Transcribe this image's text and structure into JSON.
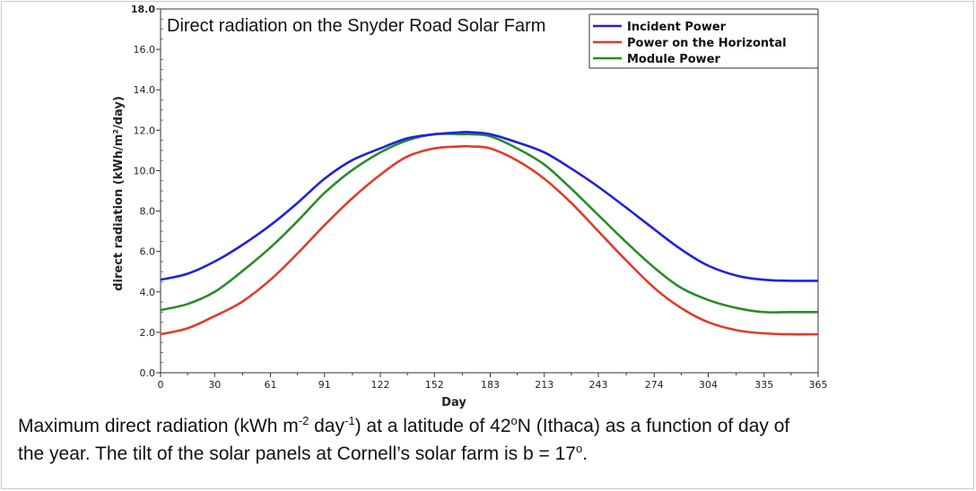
{
  "chart_data": {
    "type": "line",
    "title": "Direct radiation on the Snyder Road Solar Farm",
    "xlabel": "Day",
    "ylabel": "direct radiation (kWh/m²/day)",
    "xlim": [
      0,
      365
    ],
    "ylim": [
      0,
      18
    ],
    "x_ticks": [
      0,
      30,
      61,
      91,
      122,
      152,
      183,
      213,
      243,
      274,
      304,
      335,
      365
    ],
    "y_ticks": [
      0,
      2,
      4,
      6,
      8,
      10,
      12,
      14,
      16,
      18
    ],
    "y_tick_labels": [
      "0.0",
      "2.0",
      "4.0",
      "6.0",
      "8.0",
      "10.0",
      "12.0",
      "14.0",
      "16.0",
      "18.0"
    ],
    "x": [
      0,
      15,
      30,
      45,
      61,
      76,
      91,
      106,
      122,
      137,
      152,
      167,
      172,
      183,
      198,
      213,
      228,
      243,
      258,
      274,
      289,
      304,
      320,
      335,
      350,
      365
    ],
    "series": [
      {
        "name": "Incident Power",
        "color": "#1f1fe6",
        "values": [
          4.6,
          4.9,
          5.5,
          6.3,
          7.3,
          8.4,
          9.6,
          10.5,
          11.1,
          11.6,
          11.8,
          11.9,
          11.9,
          11.8,
          11.4,
          10.9,
          10.1,
          9.2,
          8.2,
          7.1,
          6.1,
          5.3,
          4.8,
          4.6,
          4.55,
          4.55
        ]
      },
      {
        "name": "Power on the Horizontal",
        "color": "#e5392a",
        "values": [
          1.9,
          2.2,
          2.8,
          3.5,
          4.6,
          5.9,
          7.3,
          8.6,
          9.8,
          10.7,
          11.1,
          11.2,
          11.2,
          11.1,
          10.5,
          9.6,
          8.4,
          7.0,
          5.6,
          4.2,
          3.2,
          2.5,
          2.1,
          1.95,
          1.9,
          1.9
        ]
      },
      {
        "name": "Module Power",
        "color": "#2a8c2a",
        "values": [
          3.1,
          3.4,
          4.0,
          5.0,
          6.2,
          7.5,
          8.9,
          10.0,
          10.9,
          11.5,
          11.8,
          11.8,
          11.8,
          11.7,
          11.1,
          10.3,
          9.1,
          7.8,
          6.5,
          5.2,
          4.2,
          3.6,
          3.2,
          3.0,
          3.0,
          3.0
        ]
      }
    ],
    "legend_position": "top-right",
    "grid": false
  },
  "caption": {
    "line1_pre": "Maximum direct radiation (kWh m",
    "sup1": "-2",
    "mid1": " day",
    "sup2": "-1",
    "line1_post": ") at a latitude of 42",
    "sup3": "o",
    "line1_end": "N (Ithaca) as a function of day of",
    "line2_pre": "the year. The tilt of the solar panels at Cornell’s solar farm is  b = 17",
    "sup4": "o",
    "line2_end": "."
  }
}
